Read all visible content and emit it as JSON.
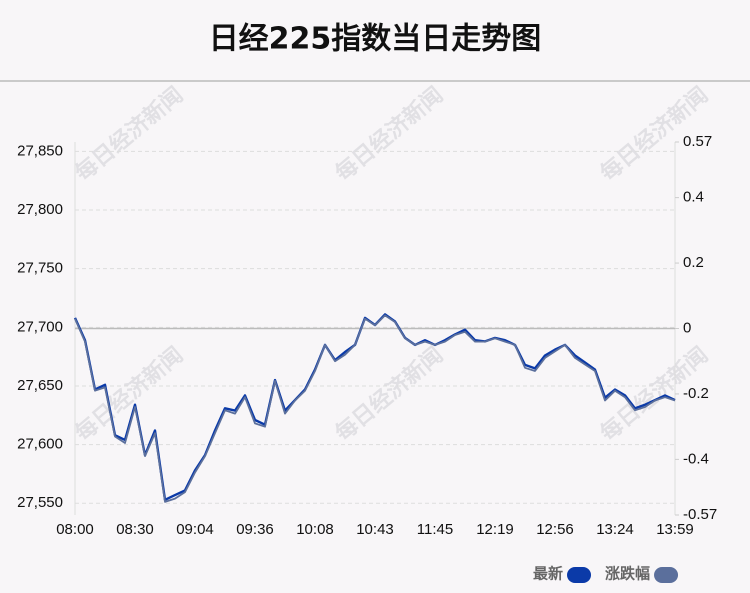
{
  "chart_data": {
    "type": "line",
    "title": "日经225指数当日走势图",
    "watermark": "每日经济新闻",
    "categories": [
      "08:00",
      null,
      null,
      null,
      null,
      null,
      "08:30",
      null,
      null,
      null,
      null,
      null,
      "09:04",
      null,
      null,
      null,
      null,
      null,
      "09:36",
      null,
      null,
      null,
      null,
      null,
      "10:08",
      null,
      null,
      null,
      null,
      null,
      "10:43",
      null,
      null,
      null,
      null,
      null,
      "11:45",
      null,
      null,
      null,
      null,
      null,
      "12:19",
      null,
      null,
      null,
      null,
      null,
      "12:56",
      null,
      null,
      null,
      null,
      null,
      "13:24",
      null,
      null,
      null,
      null,
      null,
      "13:59"
    ],
    "series": [
      {
        "name": "最新",
        "color": "#0b3aa8",
        "values": [
          27708,
          27689,
          27647,
          27651,
          27608,
          27604,
          27634,
          27591,
          27612,
          27553,
          27557,
          27561,
          27578,
          27591,
          27612,
          27631,
          27629,
          27642,
          27621,
          27617,
          27655,
          27629,
          27638,
          27647,
          27664,
          27685,
          27672,
          27679,
          27685,
          27708,
          27702,
          27711,
          27705,
          27691,
          27685,
          27689,
          27685,
          27689,
          27694,
          27698,
          27689,
          27688,
          27691,
          27689,
          27685,
          27668,
          27665,
          27676,
          27681,
          27685,
          27676,
          27670,
          27664,
          27640,
          27647,
          27642,
          27631,
          27634,
          27638,
          27642,
          27638
        ]
      },
      {
        "name": "涨跌幅",
        "color": "#5b6f9c",
        "axis": "y2",
        "values": [
          0.03,
          -0.04,
          -0.19,
          -0.18,
          -0.33,
          -0.35,
          -0.24,
          -0.39,
          -0.32,
          -0.53,
          -0.52,
          -0.5,
          -0.44,
          -0.39,
          -0.32,
          -0.25,
          -0.26,
          -0.21,
          -0.29,
          -0.3,
          -0.16,
          -0.26,
          -0.22,
          -0.19,
          -0.13,
          -0.05,
          -0.1,
          -0.08,
          -0.05,
          0.03,
          0.01,
          0.04,
          0.02,
          -0.03,
          -0.05,
          -0.04,
          -0.05,
          -0.04,
          -0.02,
          -0.01,
          -0.04,
          -0.04,
          -0.03,
          -0.04,
          -0.05,
          -0.12,
          -0.13,
          -0.09,
          -0.07,
          -0.05,
          -0.09,
          -0.11,
          -0.13,
          -0.22,
          -0.19,
          -0.21,
          -0.25,
          -0.24,
          -0.22,
          -0.21,
          -0.22
        ]
      }
    ],
    "ylim": [
      27540,
      27858
    ],
    "yticks": [
      {
        "value": 27550,
        "label": "27,550"
      },
      {
        "value": 27600,
        "label": "27,600"
      },
      {
        "value": 27650,
        "label": "27,650"
      },
      {
        "value": 27700,
        "label": "27,700"
      },
      {
        "value": 27750,
        "label": "27,750"
      },
      {
        "value": 27800,
        "label": "27,800"
      },
      {
        "value": 27850,
        "label": "27,850"
      }
    ],
    "y2lim": [
      -0.57,
      0.57
    ],
    "y2ticks": [
      0.57,
      0.4,
      0.2,
      0,
      -0.2,
      -0.4,
      -0.57
    ],
    "grid": true
  }
}
